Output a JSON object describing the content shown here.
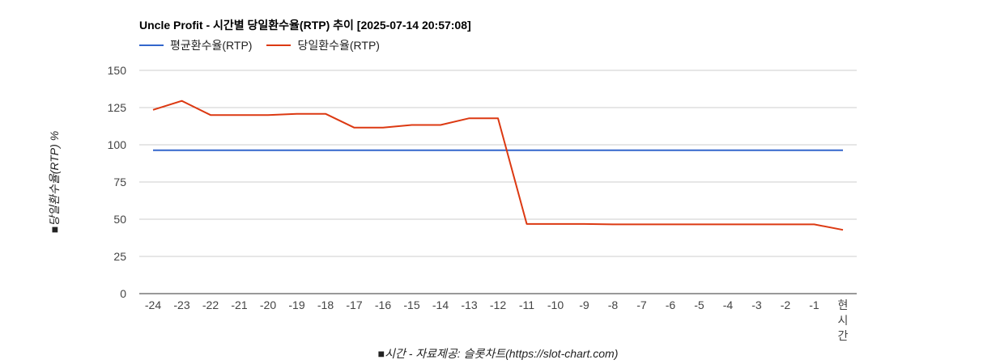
{
  "chart_data": {
    "type": "line",
    "title": "Uncle Profit - 시간별 당일환수율(RTP) 추이 [2025-07-14 20:57:08]",
    "xlabel": "■시간 - 자료제공: 슬롯차트(https://slot-chart.com)",
    "ylabel": "■당일환수율(RTP) %",
    "categories": [
      "-24",
      "-23",
      "-22",
      "-21",
      "-20",
      "-19",
      "-18",
      "-17",
      "-16",
      "-15",
      "-14",
      "-13",
      "-12",
      "-11",
      "-10",
      "-9",
      "-8",
      "-7",
      "-6",
      "-5",
      "-4",
      "-3",
      "-2",
      "-1",
      "현시간"
    ],
    "ylim": [
      0,
      150
    ],
    "yticks": [
      0,
      25,
      50,
      75,
      100,
      125,
      150
    ],
    "grid": true,
    "legend_position": "top-left",
    "series": [
      {
        "name": "평균환수율(RTP)",
        "color": "#3366cc",
        "values": [
          96.3,
          96.3,
          96.3,
          96.3,
          96.3,
          96.3,
          96.3,
          96.3,
          96.3,
          96.3,
          96.3,
          96.3,
          96.3,
          96.3,
          96.3,
          96.3,
          96.3,
          96.3,
          96.3,
          96.3,
          96.3,
          96.3,
          96.3,
          96.3,
          96.3
        ]
      },
      {
        "name": "당일환수율(RTP)",
        "color": "#dc3912",
        "values": [
          123.5,
          129.5,
          120,
          120,
          120,
          120.8,
          120.8,
          111.5,
          111.5,
          113.3,
          113.3,
          117.8,
          117.8,
          46.8,
          46.8,
          46.8,
          46.5,
          46.5,
          46.5,
          46.5,
          46.5,
          46.5,
          46.5,
          46.5,
          42.8
        ]
      }
    ]
  }
}
